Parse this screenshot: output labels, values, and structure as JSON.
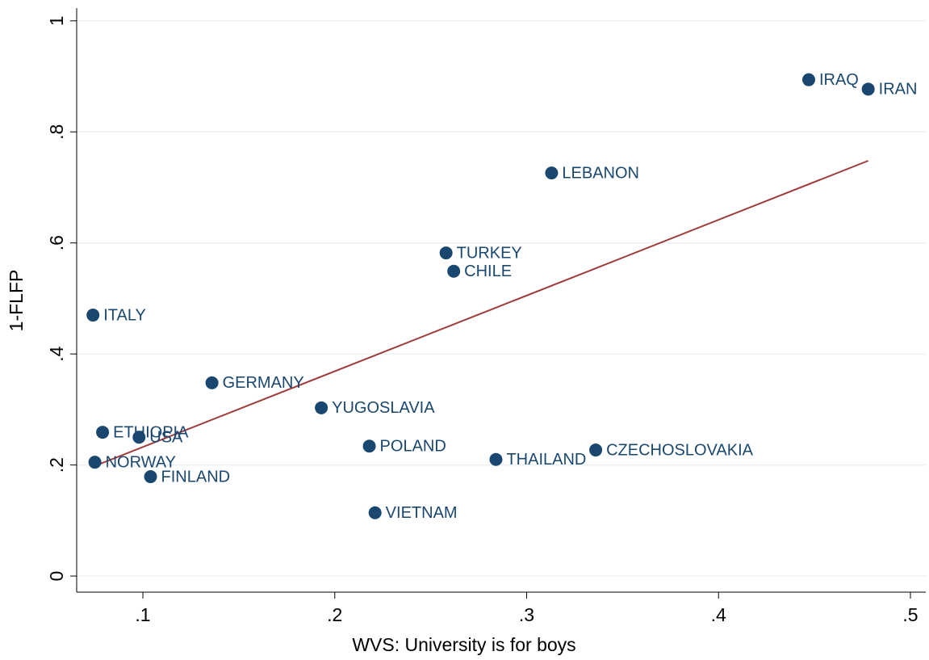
{
  "chart_data": {
    "type": "scatter",
    "xlabel": "WVS: University is for boys",
    "ylabel": "1-FLFP",
    "labels": [
      "IRAQ",
      "IRAN",
      "LEBANON",
      "TURKEY",
      "CHILE",
      "ITALY",
      "GERMANY",
      "YUGOSLAVIA",
      "ETHIOPIA",
      "USA",
      "POLAND",
      "CZECHOSLOVAKIA",
      "NORWAY",
      "THAILAND",
      "FINLAND",
      "VIETNAM"
    ],
    "x": [
      0.447,
      0.478,
      0.313,
      0.258,
      0.262,
      0.074,
      0.136,
      0.193,
      0.079,
      0.098,
      0.218,
      0.336,
      0.075,
      0.284,
      0.104,
      0.221
    ],
    "values": [
      0.894,
      0.877,
      0.726,
      0.582,
      0.549,
      0.47,
      0.348,
      0.303,
      0.259,
      0.25,
      0.234,
      0.227,
      0.205,
      0.21,
      0.179,
      0.114
    ],
    "color": "#1a476f",
    "fit": {
      "x": [
        0.074,
        0.478
      ],
      "values": [
        0.197,
        0.748
      ],
      "color": "#a03c3c"
    },
    "xlim": [
      0.0655,
      0.508
    ],
    "ylim": [
      -0.029,
      1.023
    ],
    "xticks": [
      {
        "value": 0.1,
        "label": ".1"
      },
      {
        "value": 0.2,
        "label": ".2"
      },
      {
        "value": 0.3,
        "label": ".3"
      },
      {
        "value": 0.4,
        "label": ".4"
      },
      {
        "value": 0.5,
        "label": ".5"
      }
    ],
    "yticks": [
      0,
      {
        "value": 0.2,
        "label": ".2"
      },
      {
        "value": 0.4,
        "label": ".4"
      },
      {
        "value": 0.6,
        "label": ".6"
      },
      {
        "value": 0.8,
        "label": ".8"
      },
      1
    ],
    "grid": true
  }
}
